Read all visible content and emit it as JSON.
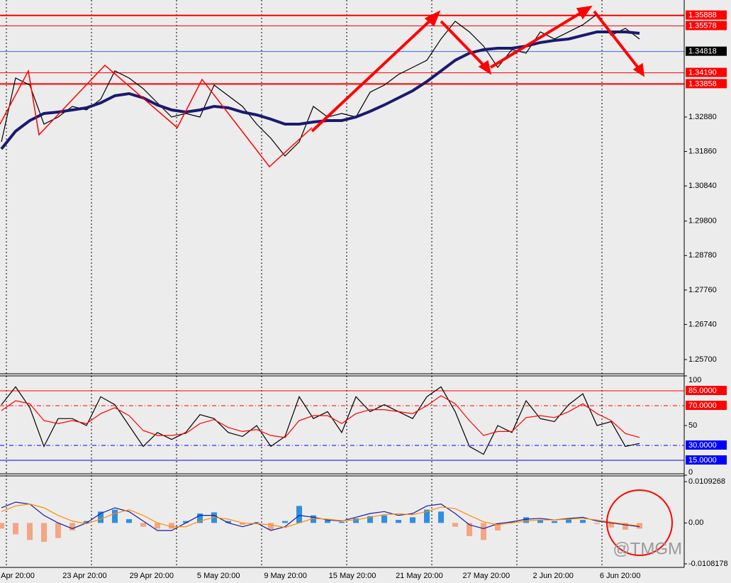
{
  "chart_data": [
    {
      "type": "line",
      "ylim": [
        1.25322,
        1.36344
      ],
      "yticks": [
        {
          "value": 1.3288,
          "label": "1.32880"
        },
        {
          "value": 1.3186,
          "label": "1.31860"
        },
        {
          "value": 1.3084,
          "label": "1.30840"
        },
        {
          "value": 1.298,
          "label": "1.29800"
        },
        {
          "value": 1.2878,
          "label": "1.28780"
        },
        {
          "value": 1.2776,
          "label": "1.27760"
        },
        {
          "value": 1.2674,
          "label": "1.26740"
        },
        {
          "value": 1.257,
          "label": "1.25700"
        }
      ],
      "levels": [
        {
          "value": 1.35888,
          "label": "1.35888",
          "color": "#ff0000",
          "style": "thick"
        },
        {
          "value": 1.35578,
          "label": "1.35578",
          "color": "#ff0000",
          "style": "thin"
        },
        {
          "value": 1.34818,
          "label": "1.34818",
          "color": "#4169e1",
          "style": "current"
        },
        {
          "value": 1.3419,
          "label": "1.34190",
          "color": "#ff0000",
          "style": "thin"
        },
        {
          "value": 1.33858,
          "label": "1.33858",
          "color": "#ff0000",
          "style": "thick"
        }
      ],
      "series": [
        {
          "type": "line",
          "color": "#000000",
          "values": [
            1.32145,
            1.34035,
            1.33825,
            1.3267,
            1.3288,
            1.33195,
            1.3309,
            1.33405,
            1.34245,
            1.34035,
            1.3372,
            1.333,
            1.3288,
            1.32985,
            1.3288,
            1.33825,
            1.3351,
            1.33195,
            1.3267,
            1.3225,
            1.31725,
            1.32145,
            1.33195,
            1.3288,
            1.32985,
            1.3288,
            1.33615,
            1.33825,
            1.3414,
            1.3435,
            1.3456,
            1.3519,
            1.35715,
            1.354,
            1.3498,
            1.3435,
            1.34875,
            1.3477,
            1.354,
            1.3519,
            1.354,
            1.3561,
            1.35925,
            1.35295,
            1.35505,
            1.3519
          ]
        },
        {
          "type": "line",
          "color": "#1a1a6e",
          "values": [
            1.31935,
            1.3246,
            1.32775,
            1.32985,
            1.33027,
            1.3309,
            1.33153,
            1.333,
            1.3351,
            1.33573,
            1.33447,
            1.33237,
            1.3309,
            1.33027,
            1.3309,
            1.33195,
            1.33153,
            1.33027,
            1.32943,
            1.32817,
            1.3267,
            1.3267,
            1.32733,
            1.32775,
            1.32775,
            1.3288,
            1.33048,
            1.33237,
            1.33447,
            1.33657,
            1.3393,
            1.34245,
            1.3456,
            1.3477,
            1.34875,
            1.34917,
            1.34917,
            1.3498,
            1.35085,
            1.35148,
            1.3519,
            1.35295,
            1.354,
            1.354,
            1.354,
            1.35358
          ]
        }
      ]
    },
    {
      "type": "line",
      "ylim": [
        0,
        100
      ],
      "yticks": [
        100,
        50,
        0
      ],
      "levels": [
        {
          "value": 85,
          "label": "85.0000",
          "color": "#ff0000",
          "style": "thin"
        },
        {
          "value": 70,
          "label": "70.0000",
          "color": "#ff0000",
          "style": "dashed"
        },
        {
          "value": 30,
          "label": "30.0000",
          "color": "#0000ff",
          "style": "dashed"
        },
        {
          "value": 15,
          "label": "15.0000",
          "color": "#0000ff",
          "style": "thin"
        }
      ],
      "series": [
        {
          "type": "line",
          "color": "#000000",
          "values": [
            71,
            89,
            68,
            29,
            57,
            57,
            50,
            79,
            71,
            50,
            29,
            43,
            36,
            43,
            61,
            57,
            43,
            39,
            50,
            29,
            39,
            79,
            57,
            64,
            43,
            79,
            64,
            71,
            64,
            57,
            79,
            89,
            64,
            29,
            21,
            50,
            43,
            75,
            57,
            54,
            71,
            82,
            50,
            54,
            29,
            32
          ]
        },
        {
          "type": "line",
          "color": "#ff0000",
          "values": [
            65,
            75,
            72,
            55,
            52,
            55,
            52,
            62,
            68,
            60,
            45,
            40,
            40,
            42,
            52,
            56,
            48,
            44,
            46,
            40,
            38,
            55,
            60,
            60,
            52,
            62,
            66,
            66,
            64,
            62,
            70,
            80,
            72,
            55,
            40,
            44,
            44,
            58,
            60,
            58,
            64,
            72,
            62,
            55,
            42,
            38
          ]
        }
      ]
    },
    {
      "type": "combo",
      "ylim": [
        -0.01176,
        0.01244
      ],
      "yticks": [
        0.0109268,
        {
          "value": 0,
          "label": "0.00"
        },
        -0.0108178
      ],
      "series": [
        {
          "type": "bar",
          "color": "#2f8fdf",
          "negative_color": "#f4a582",
          "values": [
            -0.0015,
            -0.003,
            -0.0045,
            -0.005,
            -0.004,
            -0.002,
            0.0005,
            0.003,
            0.0035,
            0.001,
            -0.001,
            -0.0015,
            -0.0015,
            0.0005,
            0.0025,
            0.0028,
            0.0005,
            -0.0005,
            0.0002,
            -0.0018,
            0.0005,
            0.0045,
            0.002,
            0.0008,
            0.0003,
            0.0012,
            0.0018,
            0.002,
            0.0008,
            0.0015,
            0.0035,
            0.003,
            -0.001,
            -0.0035,
            -0.0045,
            -0.002,
            0.0003,
            0.0015,
            0.0008,
            0.0005,
            0.0012,
            0.0008,
            -0.0003,
            -0.0012,
            -0.0018,
            -0.0015
          ]
        },
        {
          "type": "line",
          "color": "#1a1aa0",
          "values": [
            0.004,
            0.0055,
            0.005,
            0.002,
            0.0,
            -0.0015,
            0.0,
            0.0025,
            0.004,
            0.003,
            0.0005,
            -0.002,
            -0.002,
            0.0,
            0.002,
            0.002,
            0.0,
            -0.001,
            0.0,
            -0.002,
            -0.001,
            0.002,
            0.0015,
            0.0008,
            0.0005,
            0.0015,
            0.0025,
            0.003,
            0.002,
            0.0025,
            0.0045,
            0.005,
            0.0025,
            -0.0005,
            -0.0015,
            -0.0002,
            0.0003,
            0.001,
            0.0012,
            0.0008,
            0.0012,
            0.0015,
            0.0005,
            0.0,
            -0.0005,
            -0.001
          ]
        },
        {
          "type": "line",
          "color": "#ff8c00",
          "values": [
            0.003,
            0.0045,
            0.005,
            0.004,
            0.002,
            0.0005,
            -0.0002,
            0.001,
            0.0025,
            0.0035,
            0.002,
            0.0,
            -0.001,
            -0.001,
            0.0005,
            0.0015,
            0.001,
            0.0,
            -0.0002,
            -0.0005,
            -0.0012,
            0.0,
            0.0012,
            0.001,
            0.0006,
            0.0008,
            0.0015,
            0.0022,
            0.0024,
            0.0022,
            0.003,
            0.0042,
            0.0038,
            0.002,
            0.0003,
            -0.0005,
            0.0,
            0.0005,
            0.0008,
            0.0008,
            0.001,
            0.0012,
            0.0008,
            0.0002,
            -0.0003,
            -0.0008
          ]
        }
      ],
      "x_labels": [
        "Apr 20:00",
        "23 Apr 20:00",
        "29 Apr 20:00",
        "5 May 20:00",
        "9 May 20:00",
        "15 May 20:00",
        "21 May 20:00",
        "27 May 20:00",
        "2 Jun 20:00",
        "6 Jun 20:00"
      ]
    }
  ],
  "watermark": "@TMGM"
}
